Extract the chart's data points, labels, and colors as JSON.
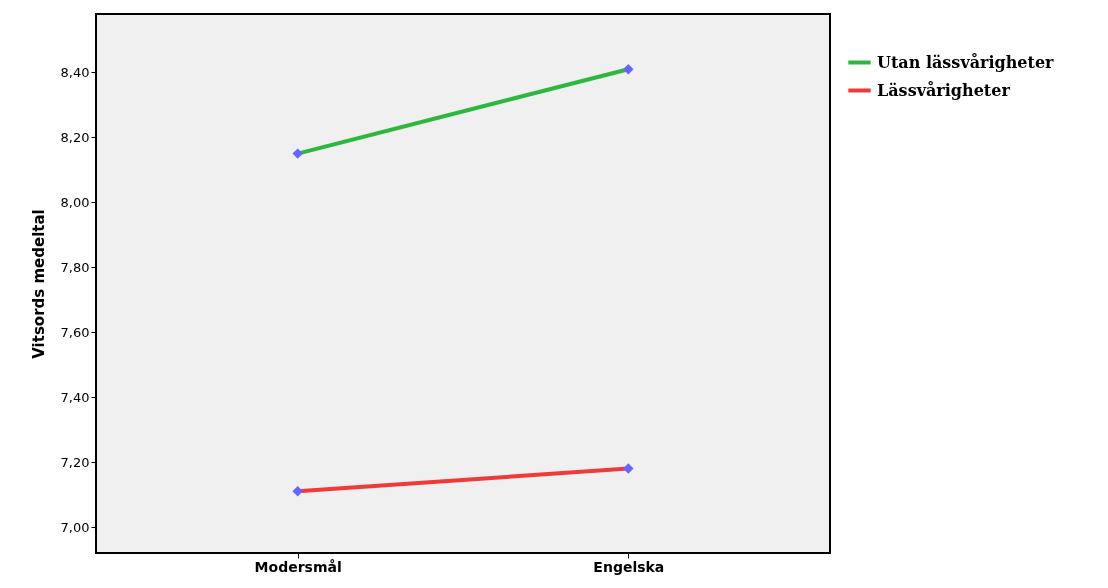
{
  "chart_data": {
    "type": "line",
    "ylabel": "Vitsords medeltal",
    "categories": [
      "Modersmål",
      "Engelska"
    ],
    "series": [
      {
        "name": "Utan lässvårigheter",
        "color": "#2db83d",
        "values": [
          8.15,
          8.41
        ]
      },
      {
        "name": "Lässvårigheter",
        "color": "#f03a3a",
        "values": [
          7.11,
          7.18
        ]
      }
    ],
    "ylim": [
      6.92,
      8.58
    ],
    "yticks": [
      {
        "value": 7.0,
        "label": "7,00"
      },
      {
        "value": 7.2,
        "label": "7,20"
      },
      {
        "value": 7.4,
        "label": "7,40"
      },
      {
        "value": 7.6,
        "label": "7,60"
      },
      {
        "value": 7.8,
        "label": "7,80"
      },
      {
        "value": 8.0,
        "label": "8,00"
      },
      {
        "value": 8.2,
        "label": "8,20"
      },
      {
        "value": 8.4,
        "label": "8,40"
      }
    ],
    "grid": false,
    "legend": "top right",
    "marker": "diamond",
    "line_style": "solid"
  }
}
